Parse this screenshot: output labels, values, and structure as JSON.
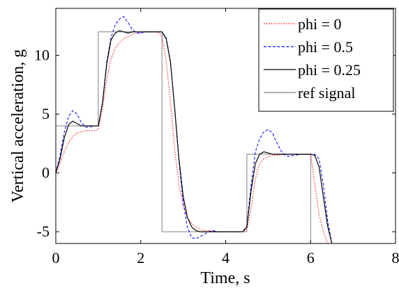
{
  "chart_data": {
    "type": "line",
    "title": "",
    "xlabel": "Time, s",
    "ylabel": "Vertical acceleration, g",
    "xlim": [
      0,
      8
    ],
    "ylim": [
      -6,
      14
    ],
    "xticks": [
      0,
      2,
      4,
      6,
      8
    ],
    "yticks": [
      -5,
      0,
      5,
      10
    ],
    "grid": false,
    "legend_position": "top-right",
    "series": [
      {
        "name": "phi = 0",
        "color": "#ff0000",
        "style": "dotted",
        "x": [
          0.0,
          0.1,
          0.2,
          0.3,
          0.4,
          0.5,
          0.6,
          0.7,
          0.8,
          0.9,
          1.0,
          1.1,
          1.2,
          1.3,
          1.4,
          1.5,
          1.6,
          1.7,
          1.8,
          1.9,
          2.0,
          2.1,
          2.2,
          2.3,
          2.4,
          2.5,
          2.6,
          2.7,
          2.8,
          2.9,
          3.0,
          3.1,
          3.2,
          3.3,
          3.4,
          3.5,
          3.6,
          3.8,
          4.0,
          4.2,
          4.4,
          4.5,
          4.6,
          4.7,
          4.8,
          4.9,
          5.0,
          5.1,
          5.2,
          5.4,
          5.6,
          5.8,
          6.0,
          6.1,
          6.2,
          6.3,
          6.4
        ],
        "values": [
          0.0,
          0.8,
          1.8,
          2.6,
          3.1,
          3.4,
          3.5,
          3.6,
          3.6,
          3.6,
          3.7,
          5.5,
          8.0,
          9.7,
          10.6,
          11.1,
          11.4,
          11.6,
          11.8,
          11.9,
          11.9,
          12.0,
          12.0,
          12.0,
          12.0,
          11.6,
          9.5,
          6.0,
          2.0,
          -1.0,
          -2.8,
          -3.8,
          -4.3,
          -4.6,
          -4.8,
          -4.9,
          -4.9,
          -5.0,
          -5.0,
          -5.0,
          -5.0,
          -4.8,
          -3.0,
          -0.5,
          0.8,
          1.2,
          1.4,
          1.5,
          1.5,
          1.6,
          1.6,
          1.6,
          1.6,
          -1.0,
          -3.5,
          -5.0,
          -6.0
        ]
      },
      {
        "name": "phi = 0.5",
        "color": "#0000ff",
        "style": "dashed",
        "x": [
          0.0,
          0.1,
          0.2,
          0.3,
          0.4,
          0.5,
          0.6,
          0.7,
          0.8,
          0.9,
          1.0,
          1.1,
          1.2,
          1.3,
          1.4,
          1.5,
          1.6,
          1.7,
          1.8,
          1.9,
          2.0,
          2.1,
          2.2,
          2.4,
          2.5,
          2.6,
          2.7,
          2.8,
          2.9,
          3.0,
          3.1,
          3.2,
          3.3,
          3.4,
          3.5,
          3.6,
          3.7,
          3.8,
          4.0,
          4.2,
          4.4,
          4.5,
          4.6,
          4.7,
          4.8,
          4.9,
          5.0,
          5.1,
          5.2,
          5.3,
          5.4,
          5.5,
          5.6,
          5.8,
          6.0,
          6.1,
          6.2,
          6.3,
          6.4,
          6.5
        ],
        "values": [
          0.0,
          1.5,
          3.5,
          4.8,
          5.3,
          5.0,
          4.3,
          3.9,
          3.9,
          4.0,
          4.0,
          6.0,
          9.5,
          11.5,
          12.6,
          13.1,
          13.3,
          12.8,
          12.2,
          11.9,
          11.9,
          12.0,
          12.0,
          12.0,
          12.0,
          11.5,
          9.5,
          5.5,
          1.0,
          -2.5,
          -4.6,
          -5.5,
          -5.6,
          -5.4,
          -5.2,
          -5.0,
          -4.9,
          -5.0,
          -5.0,
          -5.0,
          -5.0,
          -4.5,
          -1.0,
          1.8,
          2.9,
          3.5,
          3.7,
          3.4,
          2.6,
          1.9,
          1.5,
          1.4,
          1.5,
          1.6,
          1.6,
          1.6,
          1.2,
          -1.0,
          -4.0,
          -6.0
        ]
      },
      {
        "name": "phi = 0.25",
        "color": "#000000",
        "style": "solid",
        "x": [
          0.0,
          0.1,
          0.2,
          0.3,
          0.4,
          0.5,
          0.6,
          0.7,
          0.8,
          0.9,
          1.0,
          1.1,
          1.2,
          1.3,
          1.4,
          1.5,
          1.6,
          1.7,
          1.8,
          1.9,
          2.0,
          2.1,
          2.2,
          2.4,
          2.5,
          2.6,
          2.7,
          2.8,
          2.9,
          3.0,
          3.1,
          3.2,
          3.3,
          3.4,
          3.5,
          3.6,
          3.8,
          4.0,
          4.2,
          4.4,
          4.5,
          4.6,
          4.7,
          4.8,
          4.9,
          5.0,
          5.1,
          5.2,
          5.3,
          5.4,
          5.6,
          5.8,
          6.0,
          6.1,
          6.2,
          6.3,
          6.4,
          6.5
        ],
        "values": [
          0.0,
          1.2,
          3.0,
          4.1,
          4.4,
          4.2,
          4.0,
          4.0,
          4.0,
          4.0,
          4.0,
          6.0,
          9.3,
          11.3,
          11.9,
          12.1,
          12.0,
          11.9,
          12.0,
          12.0,
          12.0,
          12.0,
          12.0,
          12.0,
          12.0,
          11.4,
          9.4,
          5.5,
          1.2,
          -2.0,
          -3.8,
          -4.6,
          -4.9,
          -5.0,
          -5.0,
          -5.0,
          -5.0,
          -5.0,
          -5.0,
          -5.0,
          -4.6,
          -1.5,
          0.8,
          1.6,
          1.8,
          1.7,
          1.6,
          1.6,
          1.6,
          1.6,
          1.6,
          1.6,
          1.6,
          1.5,
          0.5,
          -2.0,
          -4.5,
          -6.0
        ]
      },
      {
        "name": "ref signal",
        "color": "#808080",
        "style": "solid",
        "x": [
          0.0,
          1.0,
          1.0,
          2.5,
          2.5,
          4.5,
          4.5,
          6.0,
          6.0
        ],
        "values": [
          4.0,
          4.0,
          12.0,
          12.0,
          -5.0,
          -5.0,
          1.6,
          1.6,
          -6.0
        ]
      }
    ]
  }
}
